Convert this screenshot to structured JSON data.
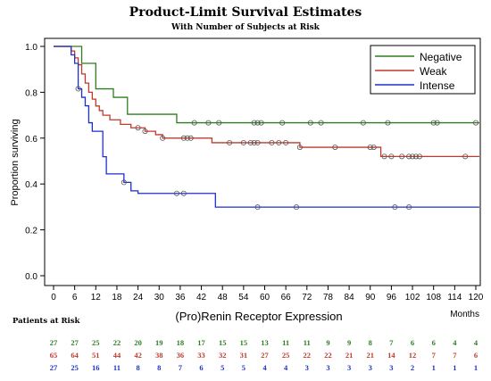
{
  "chart_data": {
    "type": "line",
    "title": "Product-Limit Survival Estimates",
    "subtitle": "With Number of Subjects at Risk",
    "xlabel": "(Pro)Renin Receptor Expression",
    "x_unit_label": "Months",
    "ylabel": "Proportion surviving",
    "xlim": [
      0,
      120
    ],
    "ylim": [
      0,
      1.0
    ],
    "x_ticks": [
      0,
      6,
      12,
      18,
      24,
      30,
      36,
      42,
      48,
      54,
      60,
      66,
      72,
      78,
      84,
      90,
      96,
      102,
      108,
      114,
      120
    ],
    "y_ticks": [
      "0.0",
      "0.2",
      "0.4",
      "0.6",
      "0.8",
      "1.0"
    ],
    "legend_position": "top-right",
    "grid": false,
    "series": [
      {
        "name": "Negative",
        "color": "#2e7d1e",
        "steps": [
          [
            0,
            1.0
          ],
          [
            8,
            0.926
          ],
          [
            12,
            0.815
          ],
          [
            17,
            0.778
          ],
          [
            21,
            0.704
          ],
          [
            35,
            0.667
          ],
          [
            121,
            0.667
          ]
        ],
        "censored": [
          40,
          44,
          47,
          57,
          58,
          59,
          65,
          73,
          76,
          88,
          95,
          108,
          109,
          120
        ]
      },
      {
        "name": "Weak",
        "color": "#c0392b",
        "steps": [
          [
            0,
            1.0
          ],
          [
            5,
            0.98
          ],
          [
            6,
            0.95
          ],
          [
            7,
            0.92
          ],
          [
            8,
            0.88
          ],
          [
            9,
            0.84
          ],
          [
            10,
            0.8
          ],
          [
            11,
            0.77
          ],
          [
            12,
            0.74
          ],
          [
            13,
            0.72
          ],
          [
            14,
            0.7
          ],
          [
            16,
            0.68
          ],
          [
            19,
            0.66
          ],
          [
            22,
            0.645
          ],
          [
            26,
            0.63
          ],
          [
            29,
            0.615
          ],
          [
            31,
            0.6
          ],
          [
            45,
            0.58
          ],
          [
            70,
            0.56
          ],
          [
            93,
            0.52
          ],
          [
            121,
            0.52
          ]
        ],
        "censored": [
          24,
          26,
          31,
          37,
          38,
          39,
          50,
          54,
          56,
          57,
          58,
          62,
          64,
          66,
          70,
          80,
          90,
          91,
          94,
          96,
          99,
          101,
          102,
          103,
          104,
          117
        ]
      },
      {
        "name": "Intense",
        "color": "#1e2fcc",
        "steps": [
          [
            0,
            1.0
          ],
          [
            5,
            0.963
          ],
          [
            6,
            0.926
          ],
          [
            7,
            0.815
          ],
          [
            8,
            0.778
          ],
          [
            9,
            0.741
          ],
          [
            10,
            0.667
          ],
          [
            11,
            0.63
          ],
          [
            14,
            0.519
          ],
          [
            15,
            0.444
          ],
          [
            20,
            0.407
          ],
          [
            22,
            0.37
          ],
          [
            24,
            0.359
          ],
          [
            46,
            0.299
          ],
          [
            121,
            0.299
          ]
        ],
        "censored": [
          7,
          20,
          35,
          37,
          58,
          69,
          97,
          101
        ]
      }
    ],
    "risk_table": {
      "heading": "Patients at Risk",
      "times": [
        0,
        6,
        12,
        18,
        24,
        30,
        36,
        42,
        48,
        54,
        60,
        66,
        72,
        78,
        84,
        90,
        96,
        102,
        108,
        114,
        120
      ],
      "rows": [
        {
          "name": "Negative",
          "color": "#2e7d1e",
          "values": [
            "27",
            "27",
            "25",
            "22",
            "20",
            "19",
            "18",
            "17",
            "15",
            "15",
            "13",
            "11",
            "11",
            "9",
            "9",
            "8",
            "7",
            "6",
            "6",
            "4",
            "4"
          ]
        },
        {
          "name": "Weak",
          "color": "#c0392b",
          "values": [
            "65",
            "64",
            "51",
            "44",
            "42",
            "38",
            "36",
            "33",
            "32",
            "31",
            "27",
            "25",
            "22",
            "22",
            "21",
            "21",
            "14",
            "12",
            "7",
            "7",
            "6"
          ]
        },
        {
          "name": "Intense",
          "color": "#1e2fcc",
          "values": [
            "27",
            "25",
            "16",
            "11",
            "8",
            "8",
            "7",
            "6",
            "5",
            "5",
            "4",
            "4",
            "3",
            "3",
            "3",
            "3",
            "3",
            "2",
            "1",
            "1",
            "1"
          ]
        }
      ]
    }
  }
}
